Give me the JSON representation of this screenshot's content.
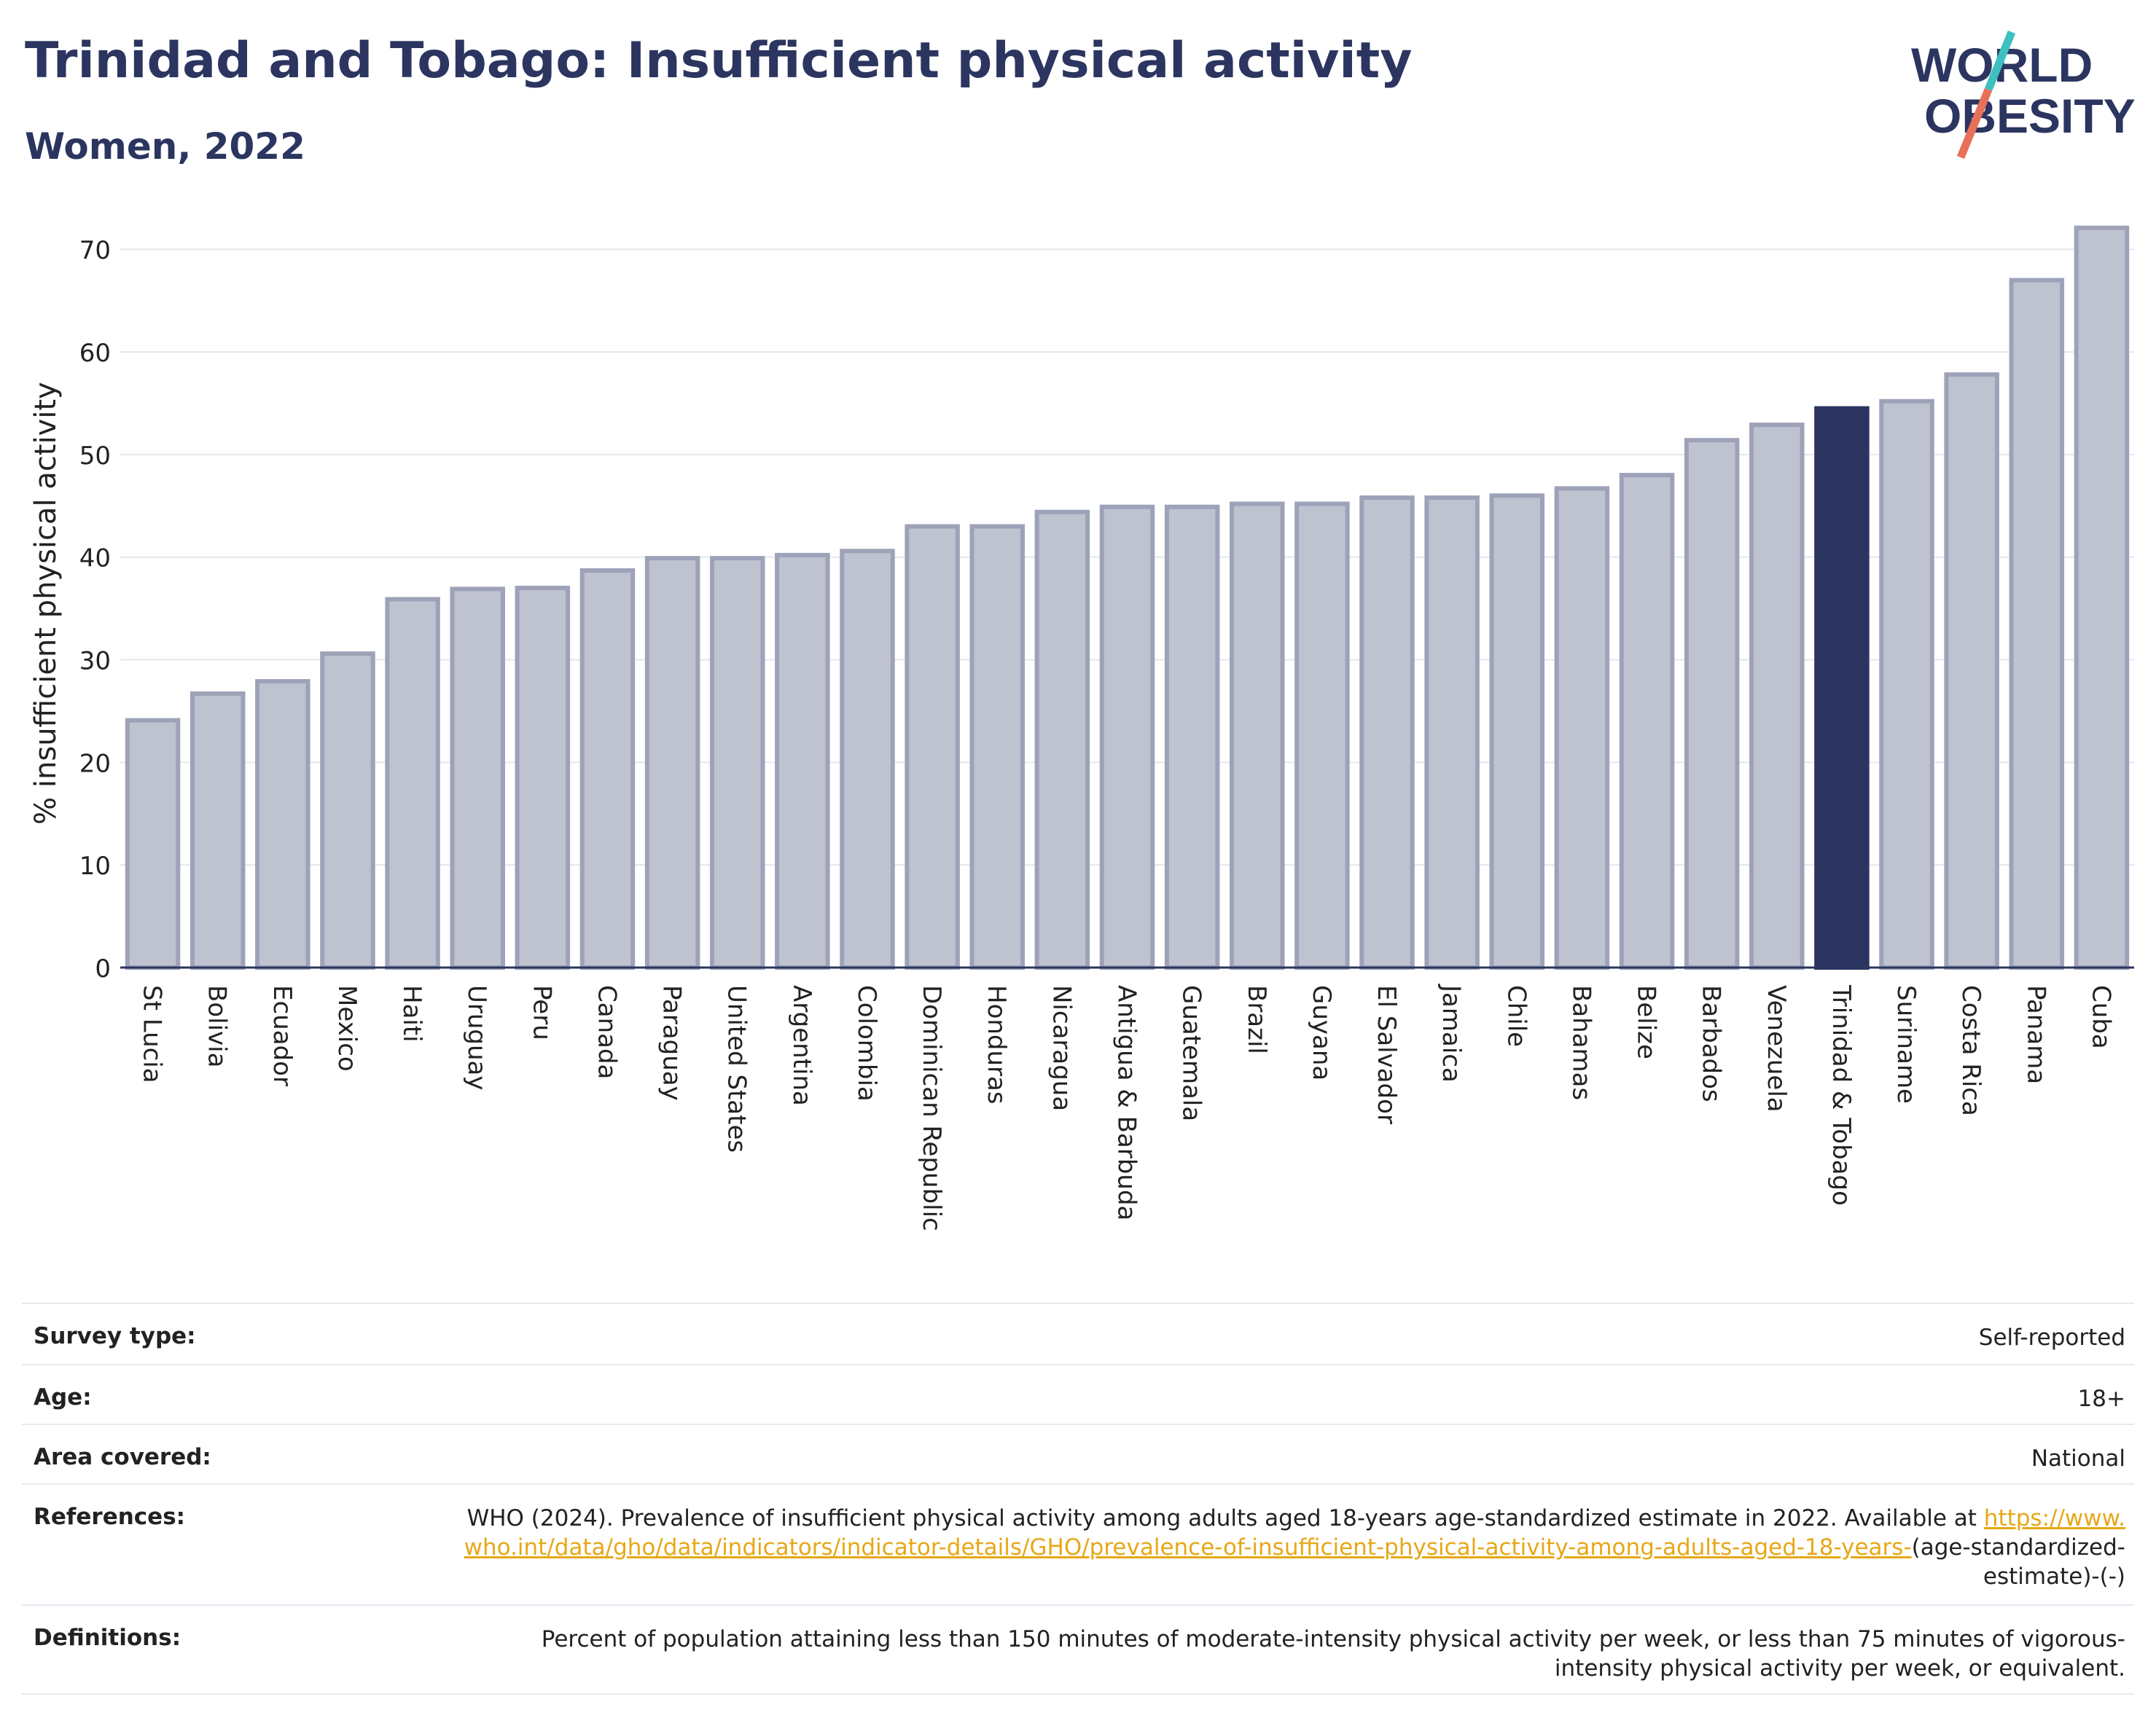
{
  "header": {
    "title": "Trinidad and Tobago: Insufficient physical activity",
    "subtitle": "Women, 2022"
  },
  "logo": {
    "line1": "WORLD",
    "line2": "OBESITY",
    "slash_colors": [
      "#3fbfbf",
      "#e8705a"
    ]
  },
  "colors": {
    "bar": "#bfc2cf",
    "bar_stroke": "#9ea2b9",
    "highlight": "#2b3560",
    "text": "#2b3560"
  },
  "chart_data": {
    "type": "bar",
    "title": "Trinidad and Tobago: Insufficient physical activity",
    "subtitle": "Women, 2022",
    "xlabel": "",
    "ylabel": "% insufficient physical activity",
    "ylim": [
      0,
      73
    ],
    "yticks": [
      0,
      10,
      20,
      30,
      40,
      50,
      60,
      70
    ],
    "grid": true,
    "highlight": "Trinidad & Tobago",
    "categories": [
      "St Lucia",
      "Bolivia",
      "Ecuador",
      "Mexico",
      "Haiti",
      "Uruguay",
      "Peru",
      "Canada",
      "Paraguay",
      "United States",
      "Argentina",
      "Colombia",
      "Dominican Republic",
      "Honduras",
      "Nicaragua",
      "Antigua & Barbuda",
      "Guatemala",
      "Brazil",
      "Guyana",
      "El Salvador",
      "Jamaica",
      "Chile",
      "Bahamas",
      "Belize",
      "Barbados",
      "Venezuela",
      "Trinidad & Tobago",
      "Suriname",
      "Costa Rica",
      "Panama",
      "Cuba"
    ],
    "values": [
      24.1,
      26.7,
      27.9,
      30.6,
      35.9,
      36.9,
      37.0,
      38.7,
      39.9,
      39.9,
      40.2,
      40.6,
      43.0,
      43.0,
      44.4,
      44.9,
      44.9,
      45.2,
      45.2,
      45.8,
      45.8,
      46.0,
      46.7,
      48.0,
      51.4,
      52.9,
      54.5,
      55.2,
      57.8,
      67.0,
      72.1
    ]
  },
  "meta": {
    "survey_type": {
      "label": "Survey type:",
      "value": "Self-reported"
    },
    "age": {
      "label": "Age:",
      "value": "18+"
    },
    "area": {
      "label": "Area covered:",
      "value": "National"
    },
    "references": {
      "label": "References:",
      "text": "WHO (2024). Prevalence of insufficient physical activity among adults aged 18-years age-standardized estimate in 2022. Available at",
      "link": "https://www.who.int/data/gho/data/indicators/indicator-details/GHO/prevalence-of-insufficient-physical-activity-among-adults-aged-18-years-",
      "suffix": "(age-standardized-estimate)-(-)"
    },
    "definitions": {
      "label": "Definitions:",
      "value": "Percent of population attaining less than 150 minutes of moderate-intensity physical activity per week, or less than 75 minutes of vigorous-intensity physical activity per week, or equivalent."
    }
  }
}
